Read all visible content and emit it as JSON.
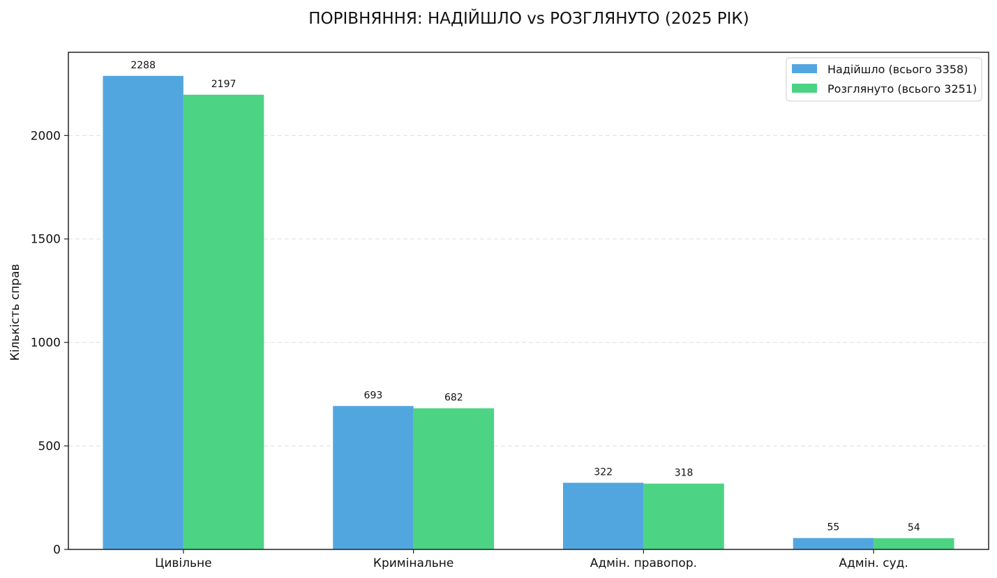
{
  "chart_data": {
    "type": "bar",
    "title": "ПОРІВНЯННЯ: НАДІЙШЛО vs РОЗГЛЯНУТО (2025 РІК)",
    "xlabel": "",
    "ylabel": "Кількість справ",
    "categories": [
      "Цивільне",
      "Кримінальне",
      "Адмін. правопор.",
      "Адмін. суд."
    ],
    "series": [
      {
        "name": "Надійшло (всього 3358)",
        "values": [
          2288,
          693,
          322,
          55
        ],
        "color": "#52a6df"
      },
      {
        "name": "Розглянуто (всього 3251)",
        "values": [
          2197,
          682,
          318,
          54
        ],
        "color": "#4cd383"
      }
    ],
    "yticks": [
      0,
      500,
      1000,
      1500,
      2000
    ],
    "ylim": [
      0,
      2402
    ],
    "grid": true,
    "grid_axis": "y",
    "legend_position": "top-right"
  }
}
